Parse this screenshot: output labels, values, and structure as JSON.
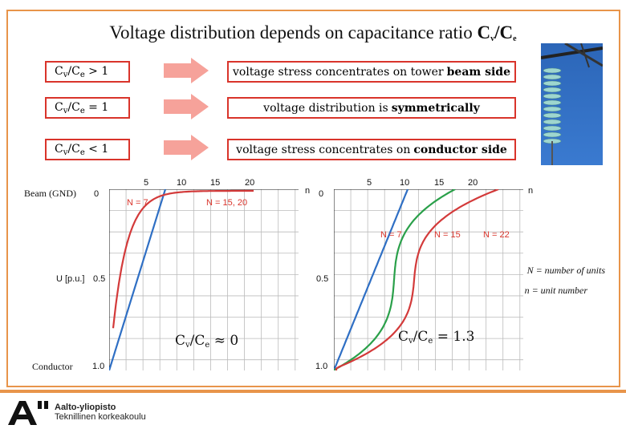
{
  "title": {
    "text": "Voltage distribution depends on capacitance ratio ",
    "ratio": "Cv/Ce"
  },
  "rows": [
    {
      "left": "Cv/Ce > 1",
      "right_prefix": "voltage stress concentrates on tower ",
      "right_bold": "beam side"
    },
    {
      "left": "Cv/Ce = 1",
      "right_prefix": "voltage distribution is ",
      "right_bold": "symmetrically"
    },
    {
      "left": "Cv/Ce < 1",
      "right_prefix": "voltage stress concentrates on ",
      "right_bold": "conductor side"
    }
  ],
  "axis": {
    "beam_label": "Beam (GND)",
    "conductor_label": "Conductor",
    "u_label": "U [p.u.]",
    "n_label": "n",
    "y_ticks": [
      "0",
      "0.5",
      "1.0"
    ],
    "x_ticks": [
      "5",
      "10",
      "15",
      "20"
    ]
  },
  "left_chart": {
    "curve_labels": [
      "N = 7",
      "N = 15, 20"
    ],
    "ratio_text": "Cv/Ce ≈ 0"
  },
  "right_chart": {
    "curve_labels": [
      "N = 7",
      "N = 15",
      "N = 22"
    ],
    "ratio_text": "Cv/Ce = 1.3"
  },
  "legend": {
    "line1": "N = number of units",
    "line2": "n = unit number"
  },
  "footer": {
    "org_line1": "Aalto-yliopisto",
    "org_line2": "Teknillinen korkeakoulu"
  },
  "colors": {
    "accent": "#e8944a",
    "box_border": "#d9342b",
    "curve_blue": "#2f6fc4",
    "curve_green": "#2aa04a",
    "curve_red": "#d33a3a",
    "arrow_fill": "#f6a29a"
  },
  "icons": [
    "arrow-right-icon",
    "aalto-logo-icon",
    "insulator-photo"
  ]
}
